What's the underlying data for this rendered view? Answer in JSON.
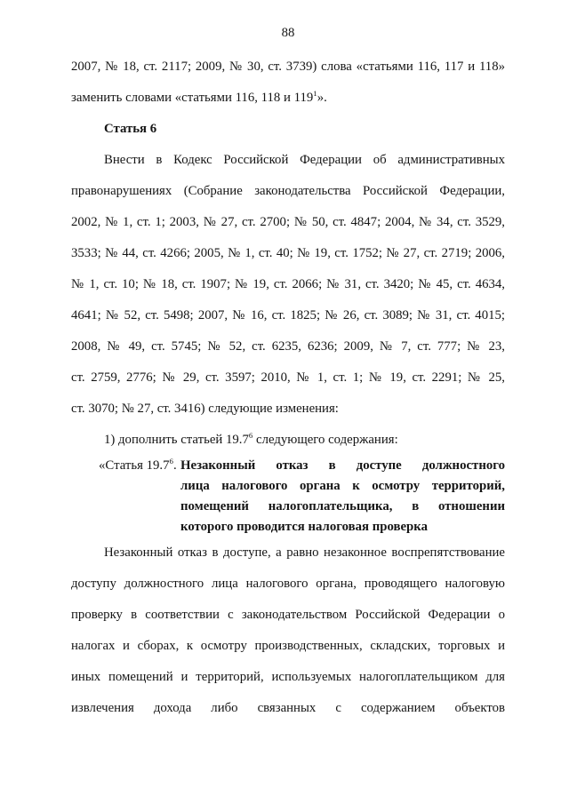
{
  "page_number": "88",
  "content": {
    "continuation_paragraph": {
      "lines": [
        "2007, № 18, ст. 2117; 2009, № 30, ст. 3739) слова «статьями 116, 117 и 118»",
        "заменить словами «статьями 116, 118 и 119^{1}»."
      ],
      "indent_first": false,
      "justify_last": false
    },
    "article_heading": "Статья 6",
    "amendment_intro": {
      "lines": [
        "Внести в Кодекс Российской Федерации об административных",
        "правонарушениях (Собрание законодательства Российской Федерации,",
        "2002, № 1, ст. 1; 2003, № 27, ст. 2700; № 50, ст. 4847; 2004, № 34, ст. 3529,",
        "3533; № 44, ст. 4266; 2005, № 1, ст. 40; № 19, ст. 1752; № 27, ст. 2719; 2006,",
        "№ 1, ст. 10; № 18, ст. 1907; № 19, ст. 2066; № 31, ст. 3420; № 45, ст. 4634,",
        "4641; № 52, ст. 5498; 2007, № 16, ст. 1825; № 26, ст. 3089; № 31, ст. 4015;",
        "2008, № 49, ст. 5745; № 52, ст. 6235, 6236; 2009, № 7, ст. 777; № 23,",
        "ст. 2759, 2776; № 29, ст. 3597; 2010, № 1, ст. 1; № 19, ст. 2291; № 25,",
        "ст. 3070; № 27, ст. 3416) следующие изменения:"
      ],
      "indent_first": true,
      "justify_last": false
    },
    "item_1": {
      "lines": [
        "1) дополнить статьей 19.7^{6} следующего содержания:"
      ],
      "indent_first": true,
      "justify_last": false
    },
    "new_article": {
      "label": "«Статья 19.7^{6}.",
      "title": {
        "lines": [
          "Незаконный отказ в доступе должностного",
          "лица налогового органа к осмотру территорий,",
          "помещений налогоплательщика, в отношении",
          "которого проводится налоговая проверка"
        ],
        "indent_first": false,
        "justify_last": false
      }
    },
    "article_body": {
      "lines": [
        "Незаконный отказ в доступе, а равно незаконное воспрепятствование",
        "доступу должностного лица налогового органа, проводящего налоговую",
        "проверку в соответствии с законодательством Российской Федерации о",
        "налогах и сборах, к осмотру производственных, складских, торговых и",
        "иных помещений и территорий, используемых налогоплательщиком для",
        "извлечения дохода либо связанных с содержанием объектов"
      ],
      "indent_first": true,
      "justify_last": true
    }
  }
}
